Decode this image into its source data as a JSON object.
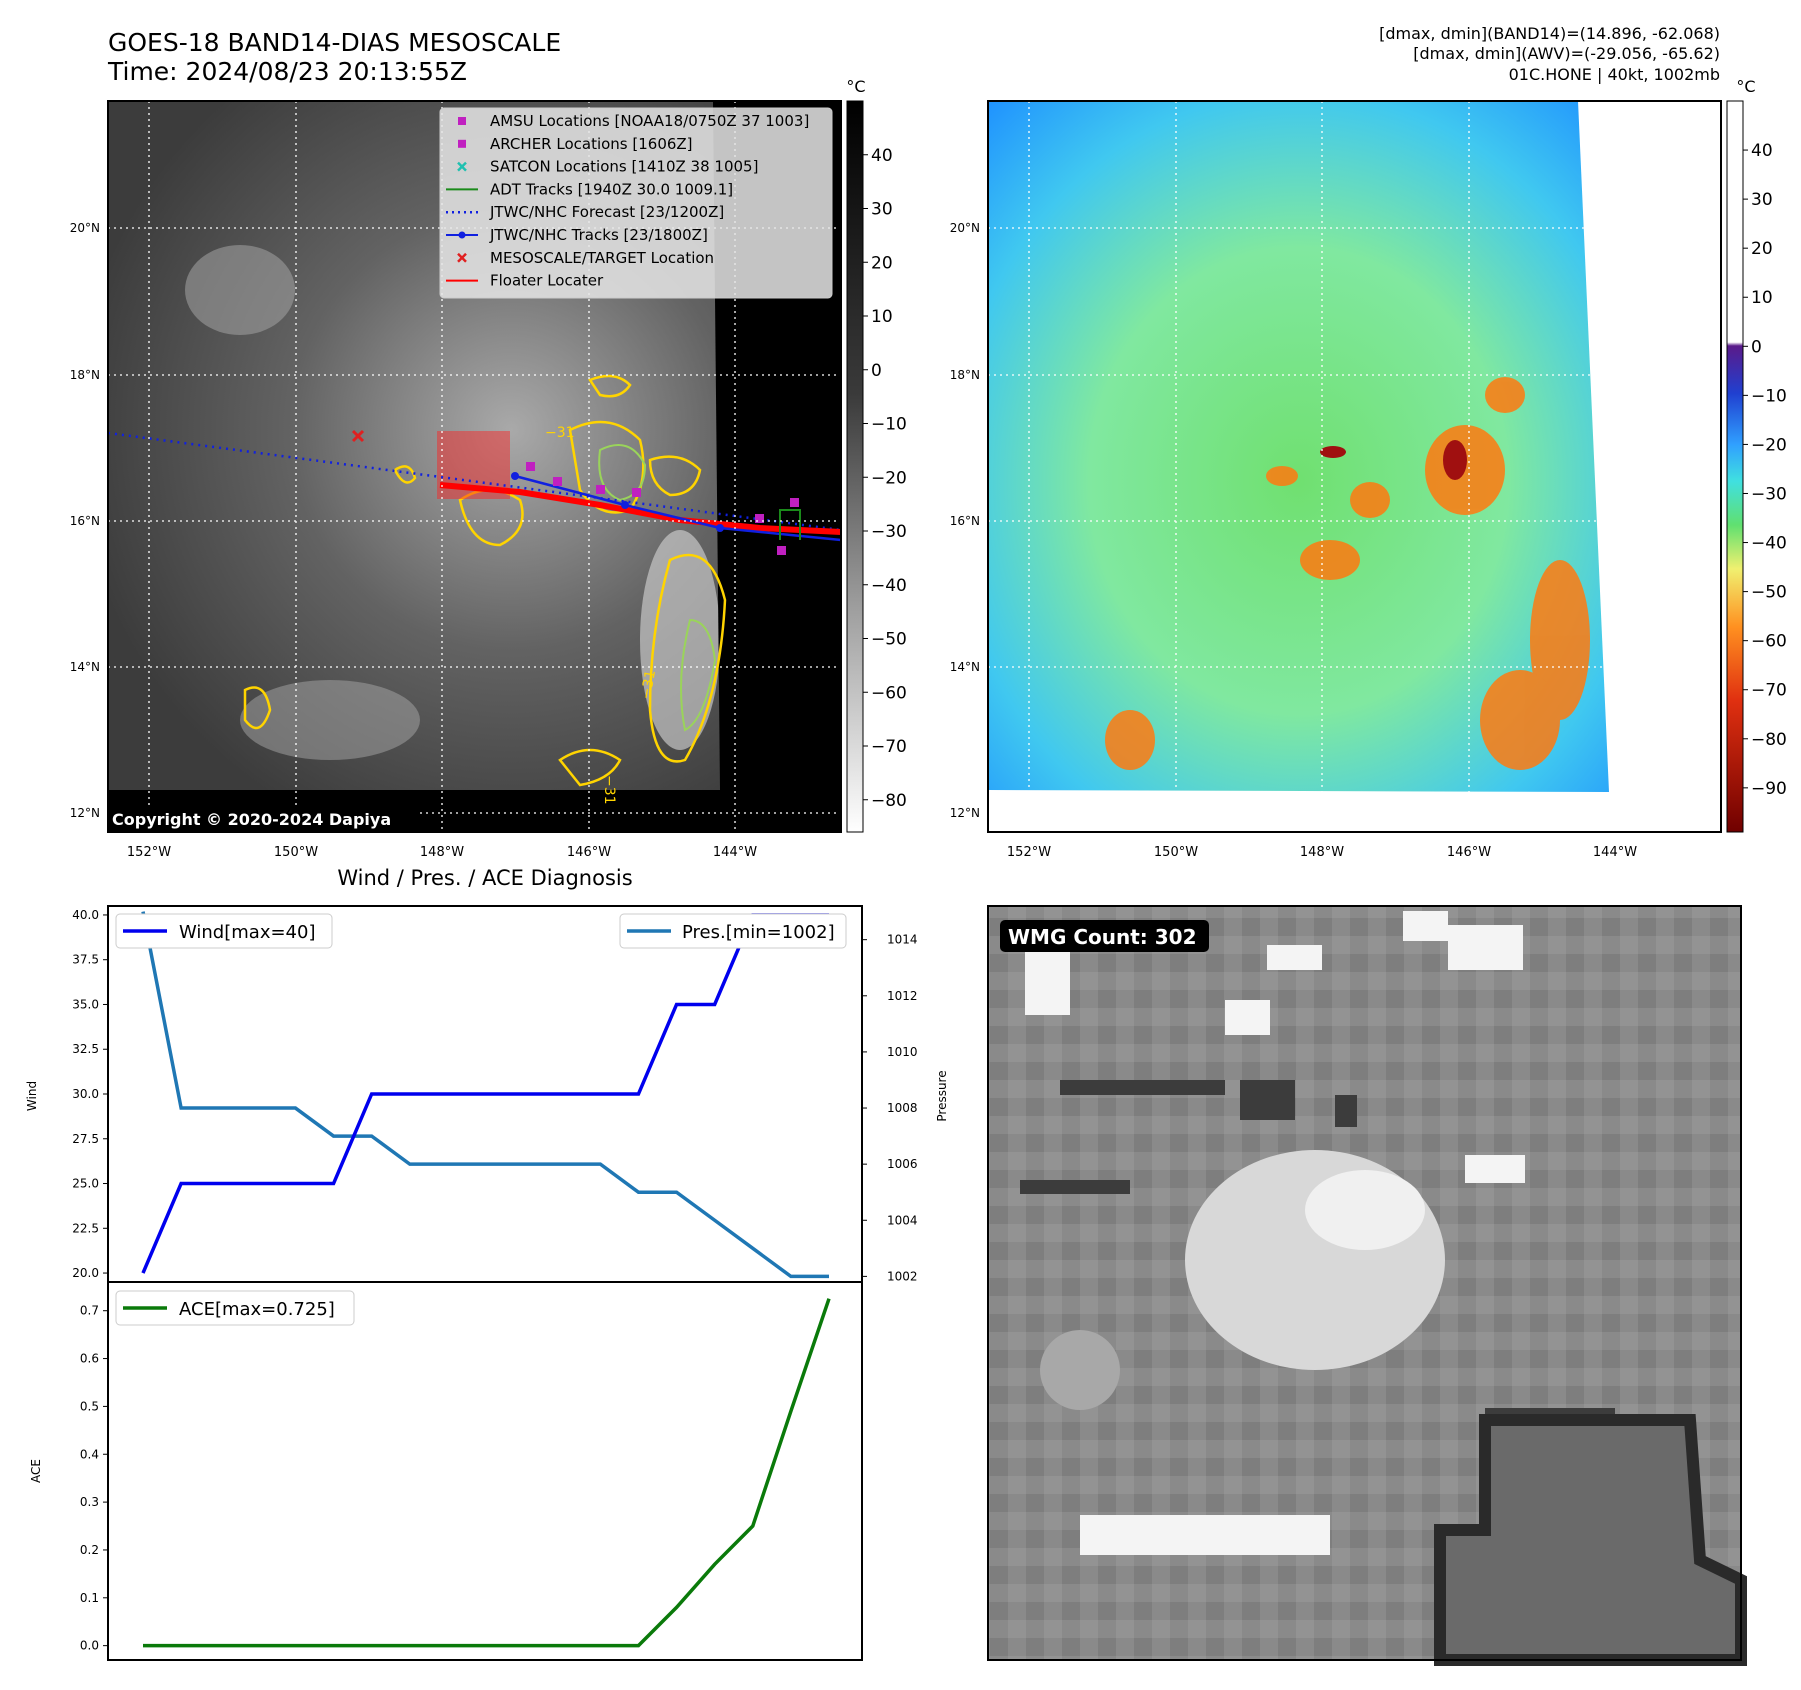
{
  "header": {
    "title_line1": "GOES-18 BAND14-DIAS MESOSCALE",
    "title_line2": "Time: 2024/08/23 20:13:55Z",
    "stats_line1": "[dmax, dmin](BAND14)=(14.896, -62.068)",
    "stats_line2": "[dmax, dmin](AWV)=(-29.056, -65.62)",
    "stats_line3": "01C.HONE | 40kt, 1002mb"
  },
  "map_axes": {
    "lat_ticks": [
      "20°N",
      "18°N",
      "16°N",
      "14°N",
      "12°N"
    ],
    "lon_ticks": [
      "152°W",
      "150°W",
      "148°W",
      "146°W",
      "144°W"
    ]
  },
  "colors": {
    "amsu": "#c020c0",
    "archer": "#c020c0",
    "satcon": "#20c0b0",
    "adt": "#1a8a1a",
    "forecast": "#1020e0",
    "tracks": "#1020e0",
    "target": "#e02020",
    "floater": "#ff0000",
    "wind": "#0000ee",
    "pressure": "#1f77b4",
    "ace": "#0a7a0a"
  },
  "ir_panel": {
    "legend": [
      {
        "label": "AMSU Locations [NOAA18/0750Z 37 1003]",
        "marker": "square",
        "color": "#c020c0"
      },
      {
        "label": "ARCHER Locations [1606Z]",
        "marker": "square",
        "color": "#c020c0"
      },
      {
        "label": "SATCON Locations [1410Z 38 1005]",
        "marker": "x",
        "color": "#20c0b0"
      },
      {
        "label": "ADT Tracks [1940Z 30.0 1009.1]",
        "marker": "line",
        "color": "#1a8a1a"
      },
      {
        "label": "JTWC/NHC Forecast [23/1200Z]",
        "marker": "dotted",
        "color": "#1020e0"
      },
      {
        "label": "JTWC/NHC Tracks [23/1800Z]",
        "marker": "line-dot",
        "color": "#1020e0"
      },
      {
        "label": "MESOSCALE/TARGET Location",
        "marker": "x",
        "color": "#e02020"
      },
      {
        "label": "Floater Locater",
        "marker": "line",
        "color": "#ff0000"
      }
    ],
    "copyright": "Copyright © 2020-2024 Dapiya",
    "colorbar_unit": "°C",
    "colorbar_ticks": [
      "40",
      "30",
      "20",
      "10",
      "0",
      "−10",
      "−20",
      "−30",
      "−40",
      "−50",
      "−60",
      "−70",
      "−80"
    ],
    "contour_labels": [
      "−31",
      "−31",
      "−31"
    ]
  },
  "wv_panel": {
    "colorbar_unit": "°C",
    "colorbar_ticks": [
      "40",
      "30",
      "20",
      "10",
      "0",
      "−10",
      "−20",
      "−30",
      "−40",
      "−50",
      "−60",
      "−70",
      "−80",
      "−90"
    ]
  },
  "chart_data": [
    {
      "type": "line",
      "title": "Wind / Pres. / ACE Diagnosis",
      "ylabel": "Wind",
      "y2label": "Pressure",
      "ylim": [
        19.5,
        40.5
      ],
      "y2lim": [
        1001.8,
        1015.2
      ],
      "yticks": [
        "40.0",
        "37.5",
        "35.0",
        "32.5",
        "30.0",
        "27.5",
        "25.0",
        "22.5",
        "20.0"
      ],
      "y2ticks": [
        "1014",
        "1012",
        "1010",
        "1008",
        "1006",
        "1004",
        "1002"
      ],
      "series": [
        {
          "name": "Wind[max=40]",
          "axis": "left",
          "values": [
            20,
            25,
            25,
            25,
            25,
            25,
            30,
            30,
            30,
            30,
            30,
            30,
            30,
            30,
            35,
            35,
            40,
            40,
            40
          ]
        },
        {
          "name": "Pres.[min=1002]",
          "axis": "right",
          "values": [
            1015,
            1008,
            1008,
            1008,
            1008,
            1007,
            1007,
            1006,
            1006,
            1006,
            1006,
            1006,
            1006,
            1005,
            1005,
            1004,
            1003,
            1002,
            1002
          ]
        }
      ]
    },
    {
      "type": "line",
      "ylabel": "ACE",
      "ylim": [
        -0.03,
        0.76
      ],
      "yticks": [
        "0.7",
        "0.6",
        "0.5",
        "0.4",
        "0.3",
        "0.2",
        "0.1",
        "0.0"
      ],
      "series": [
        {
          "name": "ACE[max=0.725]",
          "values": [
            0,
            0,
            0,
            0,
            0,
            0,
            0,
            0,
            0,
            0,
            0,
            0,
            0,
            0,
            0.08,
            0.17,
            0.25,
            0.49,
            0.725
          ]
        }
      ]
    }
  ],
  "wmg_panel": {
    "label": "WMG Count: 302"
  }
}
